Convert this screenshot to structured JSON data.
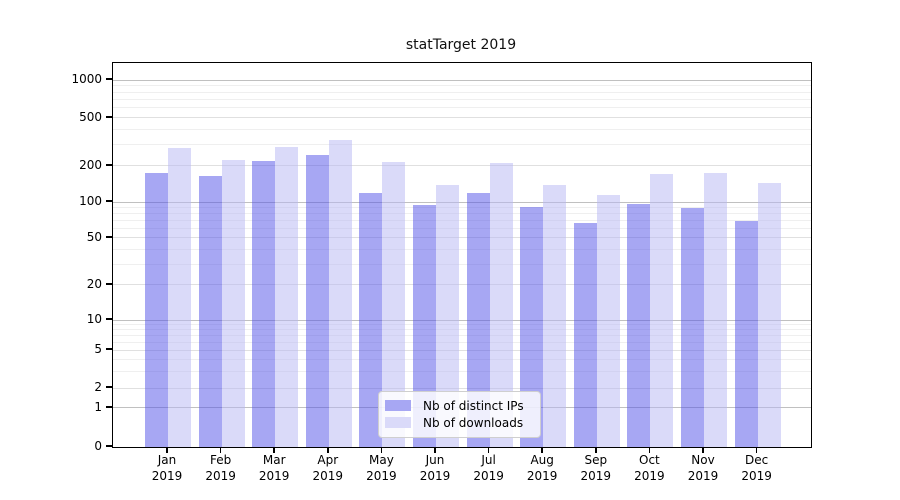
{
  "title": "statTarget 2019",
  "legend": {
    "items": [
      {
        "label": "Nb of distinct IPs",
        "color": "#a7a7f3"
      },
      {
        "label": "Nb of downloads",
        "color": "#dadaf9"
      }
    ]
  },
  "colors": {
    "bar_ips": "rgba(79,79,231,0.5)",
    "bar_downloads": "rgba(181,181,243,0.5)",
    "grid_major": "#c0c0c0",
    "grid_mid": "#e0e0e0",
    "grid_minor": "#efefef",
    "axis": "#000000"
  },
  "chart_data": {
    "type": "bar",
    "title": "statTarget 2019",
    "categories": [
      "Jan 2019",
      "Feb 2019",
      "Mar 2019",
      "Apr 2019",
      "May 2019",
      "Jun 2019",
      "Jul 2019",
      "Aug 2019",
      "Sep 2019",
      "Oct 2019",
      "Nov 2019",
      "Dec 2019"
    ],
    "series": [
      {
        "name": "Nb of distinct IPs",
        "values": [
          175,
          165,
          220,
          245,
          120,
          95,
          120,
          90,
          67,
          97,
          89,
          70
        ]
      },
      {
        "name": "Nb of downloads",
        "values": [
          280,
          225,
          285,
          330,
          215,
          140,
          210,
          140,
          115,
          170,
          175,
          145
        ]
      }
    ],
    "xlabel": "",
    "ylabel": "",
    "yscale": "log-with-zero-baseline",
    "yticks": [
      0,
      1,
      2,
      5,
      10,
      20,
      50,
      100,
      200,
      500,
      1000
    ],
    "minor_gridlines": [
      3,
      4,
      6,
      7,
      8,
      9,
      30,
      40,
      60,
      70,
      80,
      90,
      300,
      400,
      600,
      700,
      800,
      900
    ],
    "ylim": [
      0,
      1400
    ],
    "grid": true,
    "legend_position": "lower center"
  }
}
